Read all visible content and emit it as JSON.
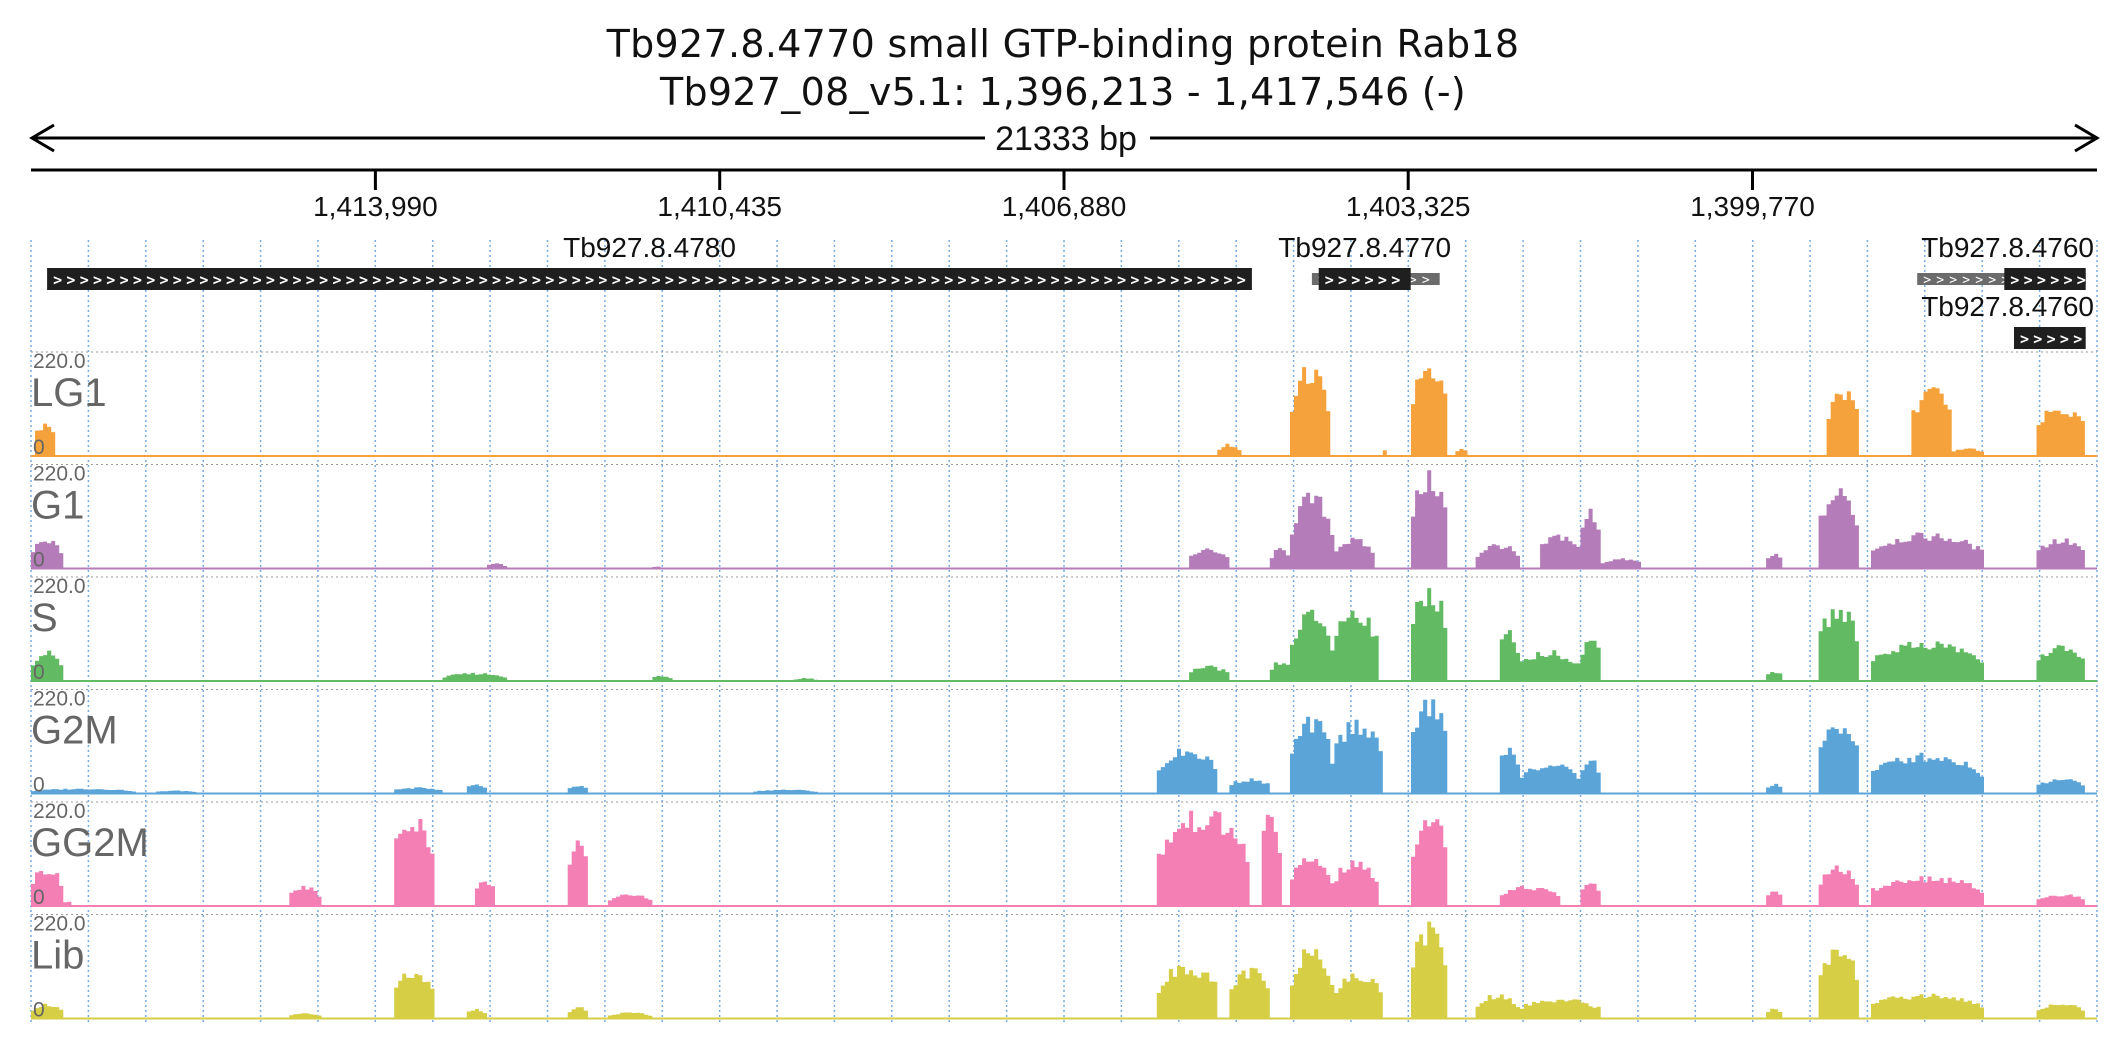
{
  "header": {
    "title": "Tb927.8.4770  small GTP-binding protein Rab18",
    "location": "Tb927_08_v5.1: 1,396,213 - 1,417,546 (-)",
    "span_label": "21333 bp"
  },
  "region": {
    "start": 1396213,
    "end": 1417546,
    "strand": "-"
  },
  "ruler": {
    "ticks": [
      {
        "pos": 1413990,
        "label": "1,413,990"
      },
      {
        "pos": 1410435,
        "label": "1,410,435"
      },
      {
        "pos": 1406880,
        "label": "1,406,880"
      },
      {
        "pos": 1403325,
        "label": "1,403,325"
      },
      {
        "pos": 1399770,
        "label": "1,399,770"
      }
    ]
  },
  "genes": [
    {
      "id": "Tb927.8.4780",
      "label": "Tb927.8.4780",
      "start": 1404940,
      "end": 1417380,
      "row": 0,
      "arrow": ">"
    },
    {
      "id": "Tb927.8.4770",
      "label": "Tb927.8.4770",
      "start": 1403300,
      "end": 1404250,
      "row": 0,
      "arrow": ">",
      "utr": [
        1403000,
        1404320
      ]
    },
    {
      "id": "Tb927.8.4760-a",
      "label": "Tb927.8.4760",
      "start": 1396330,
      "end": 1397170,
      "row": 0,
      "arrow": ">",
      "utr": [
        1396330,
        1398070
      ]
    },
    {
      "id": "Tb927.8.4760-b",
      "label": "Tb927.8.4760",
      "start": 1396330,
      "end": 1397070,
      "row": 1,
      "arrow": ">"
    }
  ],
  "tracks": [
    {
      "name": "LG1",
      "max_label": "220.0",
      "min_label": "0",
      "color": "#f5a23c"
    },
    {
      "name": "G1",
      "max_label": "220.0",
      "min_label": "0",
      "color": "#b47cb8"
    },
    {
      "name": "S",
      "max_label": "220.0",
      "min_label": "0",
      "color": "#62bb63"
    },
    {
      "name": "G2M",
      "max_label": "220.0",
      "min_label": "0",
      "color": "#5aa4d8"
    },
    {
      "name": "GG2M",
      "max_label": "220.0",
      "min_label": "0",
      "color": "#f37fb5"
    },
    {
      "name": "Lib",
      "max_label": "220.0",
      "min_label": "0",
      "color": "#d6ce45"
    }
  ],
  "coverage_ranges": [
    [
      [
        0.002,
        0.012,
        0.35
      ],
      [
        0.575,
        0.585,
        0.12
      ],
      [
        0.61,
        0.628,
        0.9
      ],
      [
        0.655,
        0.657,
        0.07
      ],
      [
        0.668,
        0.686,
        0.95
      ],
      [
        0.69,
        0.695,
        0.08
      ],
      [
        0.87,
        0.885,
        0.7
      ],
      [
        0.91,
        0.93,
        0.7
      ],
      [
        0.93,
        0.945,
        0.08
      ],
      [
        0.97,
        0.995,
        0.5
      ]
    ],
    [
      [
        0.0,
        0.015,
        0.3
      ],
      [
        0.22,
        0.23,
        0.05
      ],
      [
        0.3,
        0.305,
        0.02
      ],
      [
        0.56,
        0.58,
        0.2
      ],
      [
        0.6,
        0.61,
        0.2
      ],
      [
        0.61,
        0.63,
        0.75
      ],
      [
        0.63,
        0.65,
        0.3
      ],
      [
        0.668,
        0.686,
        0.95
      ],
      [
        0.7,
        0.72,
        0.25
      ],
      [
        0.73,
        0.75,
        0.35
      ],
      [
        0.75,
        0.76,
        0.6
      ],
      [
        0.76,
        0.78,
        0.1
      ],
      [
        0.84,
        0.848,
        0.15
      ],
      [
        0.865,
        0.885,
        0.8
      ],
      [
        0.89,
        0.945,
        0.35
      ],
      [
        0.97,
        0.995,
        0.3
      ]
    ],
    [
      [
        0.0,
        0.015,
        0.3
      ],
      [
        0.2,
        0.23,
        0.08
      ],
      [
        0.3,
        0.31,
        0.05
      ],
      [
        0.37,
        0.38,
        0.03
      ],
      [
        0.56,
        0.58,
        0.15
      ],
      [
        0.6,
        0.61,
        0.2
      ],
      [
        0.61,
        0.63,
        0.7
      ],
      [
        0.63,
        0.652,
        0.75
      ],
      [
        0.668,
        0.686,
        0.95
      ],
      [
        0.71,
        0.72,
        0.5
      ],
      [
        0.72,
        0.75,
        0.3
      ],
      [
        0.75,
        0.76,
        0.45
      ],
      [
        0.84,
        0.848,
        0.1
      ],
      [
        0.865,
        0.885,
        0.75
      ],
      [
        0.89,
        0.945,
        0.4
      ],
      [
        0.97,
        0.995,
        0.35
      ]
    ],
    [
      [
        0.0,
        0.05,
        0.05
      ],
      [
        0.06,
        0.08,
        0.03
      ],
      [
        0.175,
        0.2,
        0.06
      ],
      [
        0.21,
        0.22,
        0.1
      ],
      [
        0.26,
        0.27,
        0.08
      ],
      [
        0.35,
        0.38,
        0.04
      ],
      [
        0.545,
        0.575,
        0.45
      ],
      [
        0.58,
        0.6,
        0.15
      ],
      [
        0.61,
        0.63,
        0.75
      ],
      [
        0.63,
        0.655,
        0.75
      ],
      [
        0.668,
        0.686,
        0.95
      ],
      [
        0.71,
        0.72,
        0.5
      ],
      [
        0.72,
        0.75,
        0.3
      ],
      [
        0.75,
        0.76,
        0.35
      ],
      [
        0.84,
        0.848,
        0.1
      ],
      [
        0.865,
        0.885,
        0.75
      ],
      [
        0.89,
        0.945,
        0.4
      ],
      [
        0.97,
        0.995,
        0.15
      ]
    ],
    [
      [
        0.0,
        0.015,
        0.4
      ],
      [
        0.015,
        0.02,
        0.05
      ],
      [
        0.125,
        0.14,
        0.2
      ],
      [
        0.175,
        0.195,
        0.95
      ],
      [
        0.215,
        0.225,
        0.25
      ],
      [
        0.26,
        0.27,
        0.65
      ],
      [
        0.28,
        0.3,
        0.12
      ],
      [
        0.545,
        0.59,
        0.95
      ],
      [
        0.595,
        0.605,
        0.95
      ],
      [
        0.61,
        0.63,
        0.5
      ],
      [
        0.63,
        0.652,
        0.45
      ],
      [
        0.668,
        0.686,
        0.95
      ],
      [
        0.71,
        0.74,
        0.2
      ],
      [
        0.75,
        0.76,
        0.25
      ],
      [
        0.84,
        0.848,
        0.15
      ],
      [
        0.865,
        0.885,
        0.4
      ],
      [
        0.89,
        0.945,
        0.3
      ],
      [
        0.97,
        0.995,
        0.12
      ]
    ],
    [
      [
        0.0,
        0.015,
        0.15
      ],
      [
        0.125,
        0.14,
        0.05
      ],
      [
        0.175,
        0.195,
        0.5
      ],
      [
        0.21,
        0.22,
        0.1
      ],
      [
        0.26,
        0.27,
        0.12
      ],
      [
        0.28,
        0.3,
        0.06
      ],
      [
        0.545,
        0.575,
        0.55
      ],
      [
        0.58,
        0.6,
        0.5
      ],
      [
        0.61,
        0.63,
        0.75
      ],
      [
        0.63,
        0.655,
        0.45
      ],
      [
        0.668,
        0.686,
        0.95
      ],
      [
        0.7,
        0.72,
        0.25
      ],
      [
        0.72,
        0.76,
        0.2
      ],
      [
        0.84,
        0.848,
        0.1
      ],
      [
        0.865,
        0.885,
        0.75
      ],
      [
        0.89,
        0.945,
        0.25
      ],
      [
        0.97,
        0.995,
        0.15
      ]
    ]
  ],
  "style": {
    "gene_fill": "#1f1f1f",
    "utr_fill": "#6b6b6b",
    "grid_color": "#4a90d9",
    "label_color": "#666666"
  }
}
